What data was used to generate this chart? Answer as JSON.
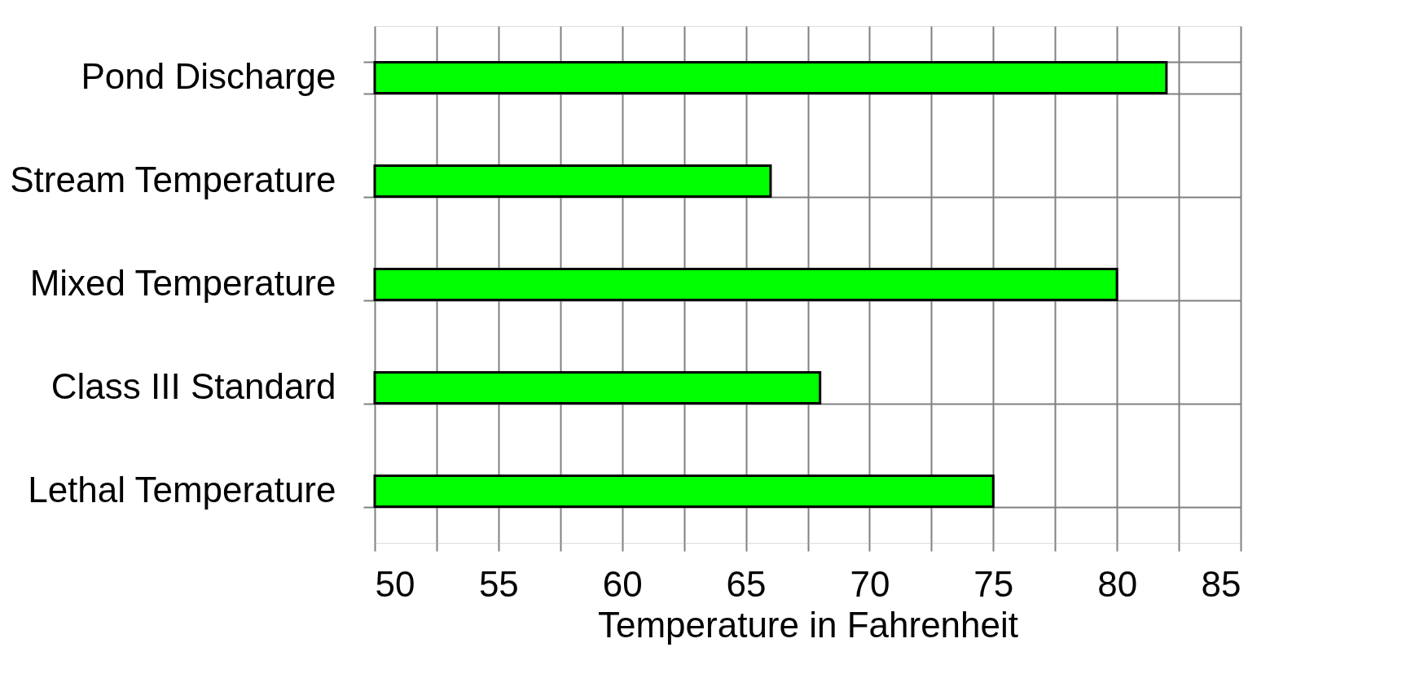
{
  "chart_data": {
    "type": "bar",
    "orientation": "horizontal",
    "xlabel": "Temperature in Fahrenheit",
    "categories": [
      "Pond Discharge",
      "Stream Temperature",
      "Mixed Temperature",
      "Class III Standard",
      "Lethal Temperature"
    ],
    "values": [
      82,
      66,
      80,
      68,
      75
    ],
    "color": "#00ff00",
    "xlim": [
      50,
      85
    ],
    "xticks": [
      50,
      {
        "value": 52.5,
        "label": null
      },
      55,
      {
        "value": 57.5,
        "label": null
      },
      60,
      {
        "value": 62.5,
        "label": null
      },
      65,
      {
        "value": 67.5,
        "label": null
      },
      70,
      {
        "value": 72.5,
        "label": null
      },
      75,
      {
        "value": 77.5,
        "label": null
      },
      80,
      {
        "value": 82.5,
        "label": null
      },
      85
    ],
    "grid": true
  }
}
